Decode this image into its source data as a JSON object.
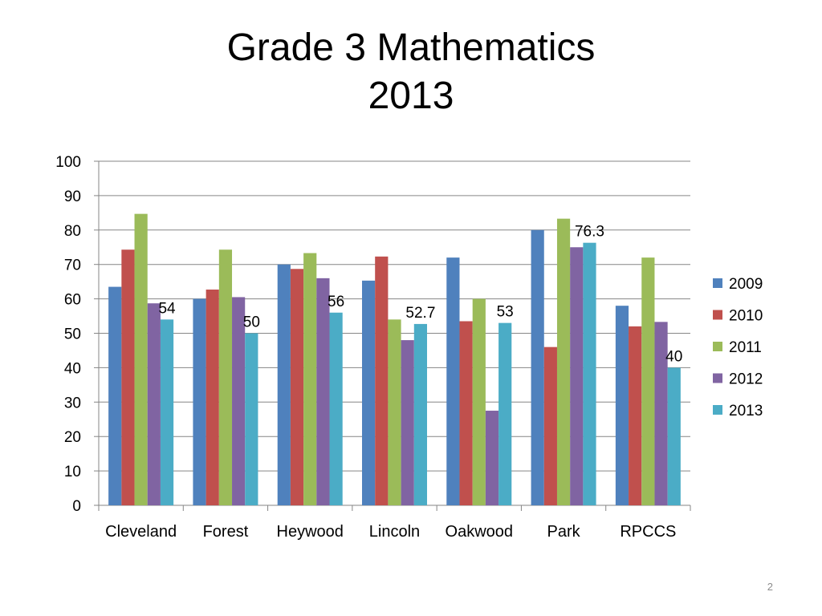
{
  "slide": {
    "title_line1": "Grade 3 Mathematics",
    "title_line2": "2013",
    "page_number": "2"
  },
  "chart_data": {
    "type": "bar",
    "categories": [
      "Cleveland",
      "Forest",
      "Heywood",
      "Lincoln",
      "Oakwood",
      "Park",
      "RPCCS"
    ],
    "series": [
      {
        "name": "2009",
        "color": "#4F81BD",
        "values": [
          63.5,
          60,
          70,
          65.3,
          72,
          80,
          58
        ]
      },
      {
        "name": "2010",
        "color": "#C0504D",
        "values": [
          74.3,
          62.7,
          68.7,
          72.3,
          53.5,
          46,
          52
        ]
      },
      {
        "name": "2011",
        "color": "#9BBB59",
        "values": [
          84.7,
          74.3,
          73.3,
          54,
          60,
          83.3,
          72
        ]
      },
      {
        "name": "2012",
        "color": "#8064A2",
        "values": [
          58.7,
          60.5,
          66,
          48,
          27.5,
          75,
          53.3
        ]
      },
      {
        "name": "2013",
        "color": "#4BACC6",
        "values": [
          54,
          50,
          56,
          52.7,
          53,
          76.3,
          40
        ]
      }
    ],
    "data_labels": {
      "series": "2013",
      "labels": [
        "54",
        "50",
        "56",
        "52.7",
        "53",
        "76.3",
        "40"
      ]
    },
    "ylim": [
      0,
      100
    ],
    "yticks": [
      0,
      10,
      20,
      30,
      40,
      50,
      60,
      70,
      80,
      90,
      100
    ],
    "grid": true,
    "legend": "right"
  }
}
